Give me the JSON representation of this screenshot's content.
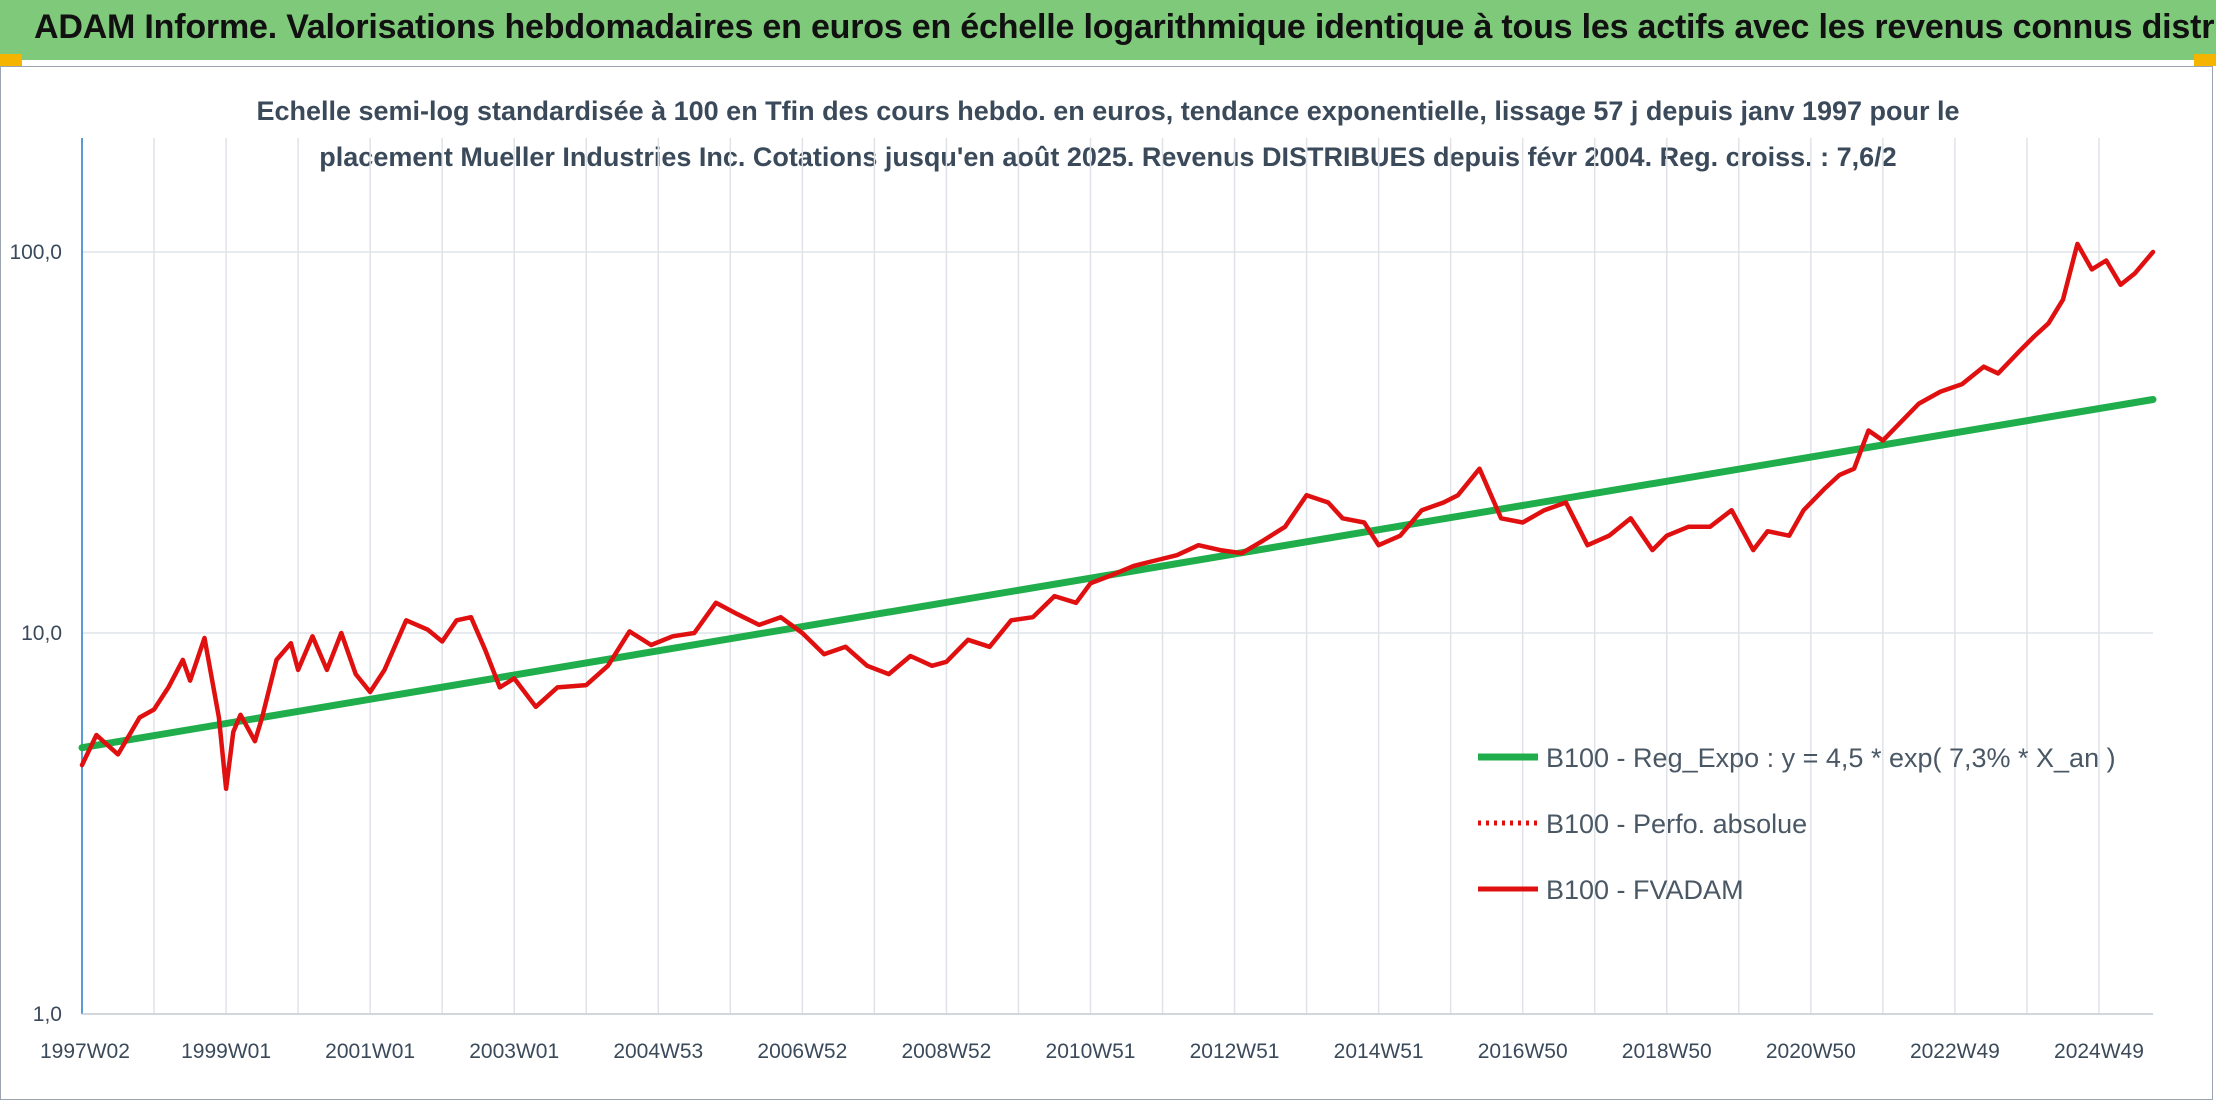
{
  "banner": {
    "title": "ADAM Informe. Valorisations hebdomadaires en euros en échelle logarithmique identique à tous les actifs avec les revenus connus distribués",
    "color": "#7fc97a"
  },
  "chart_data": {
    "type": "line",
    "title_line1": "Echelle semi-log standardisée à 100 en Tfin des cours hebdo. en euros, tendance exponentielle, lissage 57 j depuis janv 1997 pour le",
    "title_line2": "placement Mueller Industries Inc. Cotations jusqu'en août 2025. Revenus DISTRIBUES depuis févr 2004. Reg. croiss. : 7,6/2",
    "yscale": "log",
    "ylim": [
      1,
      200
    ],
    "yticks": [
      {
        "value": 1,
        "label": "1,0"
      },
      {
        "value": 10,
        "label": "10,0"
      },
      {
        "value": 100,
        "label": "100,0"
      }
    ],
    "xlim": [
      1997.0,
      2025.75
    ],
    "xticks": [
      {
        "value": 1997.0,
        "label": "1997W02"
      },
      {
        "value": 1999.0,
        "label": "1999W01"
      },
      {
        "value": 2001.0,
        "label": "2001W01"
      },
      {
        "value": 2003.0,
        "label": "2003W01"
      },
      {
        "value": 2005.0,
        "label": "2004W53"
      },
      {
        "value": 2007.0,
        "label": "2006W52"
      },
      {
        "value": 2009.0,
        "label": "2008W52"
      },
      {
        "value": 2011.0,
        "label": "2010W51"
      },
      {
        "value": 2013.0,
        "label": "2012W51"
      },
      {
        "value": 2015.0,
        "label": "2014W51"
      },
      {
        "value": 2017.0,
        "label": "2016W50"
      },
      {
        "value": 2019.0,
        "label": "2018W50"
      },
      {
        "value": 2021.0,
        "label": "2020W50"
      },
      {
        "value": 2023.0,
        "label": "2022W49"
      },
      {
        "value": 2025.0,
        "label": "2024W49"
      }
    ],
    "grid": "vertical",
    "legend_position": "right",
    "series": [
      {
        "name": "B100 - Reg_Expo : y = 4,5 * exp( 7,3% *  X_an )",
        "color": "#1fae4b",
        "style": "solid",
        "x": [
          1997.0,
          2025.75
        ],
        "y": [
          5.0,
          41.0
        ]
      },
      {
        "name": "B100 - Perfo. absolue",
        "color": "#e01010",
        "style": "dotted",
        "x": [],
        "y": []
      },
      {
        "name": "B100 - FVADAM",
        "color": "#e01010",
        "style": "solid",
        "x": [
          1997.0,
          1997.2,
          1997.5,
          1997.8,
          1998.0,
          1998.2,
          1998.4,
          1998.5,
          1998.7,
          1998.9,
          1999.0,
          1999.1,
          1999.2,
          1999.4,
          1999.5,
          1999.7,
          1999.9,
          2000.0,
          2000.2,
          2000.4,
          2000.6,
          2000.8,
          2001.0,
          2001.2,
          2001.5,
          2001.8,
          2002.0,
          2002.2,
          2002.4,
          2002.6,
          2002.8,
          2003.0,
          2003.3,
          2003.6,
          2004.0,
          2004.3,
          2004.6,
          2004.9,
          2005.2,
          2005.5,
          2005.8,
          2006.1,
          2006.4,
          2006.7,
          2007.0,
          2007.3,
          2007.6,
          2007.9,
          2008.2,
          2008.5,
          2008.8,
          2009.0,
          2009.3,
          2009.6,
          2009.9,
          2010.2,
          2010.5,
          2010.8,
          2011.0,
          2011.3,
          2011.6,
          2011.9,
          2012.2,
          2012.5,
          2012.8,
          2013.1,
          2013.4,
          2013.7,
          2014.0,
          2014.3,
          2014.5,
          2014.8,
          2015.0,
          2015.3,
          2015.6,
          2015.9,
          2016.1,
          2016.4,
          2016.7,
          2017.0,
          2017.3,
          2017.6,
          2017.9,
          2018.2,
          2018.5,
          2018.8,
          2019.0,
          2019.3,
          2019.6,
          2019.9,
          2020.2,
          2020.4,
          2020.7,
          2020.9,
          2021.2,
          2021.4,
          2021.6,
          2021.8,
          2022.0,
          2022.2,
          2022.5,
          2022.8,
          2023.1,
          2023.4,
          2023.6,
          2023.9,
          2024.1,
          2024.3,
          2024.5,
          2024.7,
          2024.9,
          2025.1,
          2025.3,
          2025.5,
          2025.75
        ],
        "y": [
          4.5,
          5.4,
          4.8,
          6.0,
          6.3,
          7.2,
          8.5,
          7.5,
          9.7,
          6.0,
          3.9,
          5.5,
          6.1,
          5.2,
          6.0,
          8.5,
          9.4,
          8.0,
          9.8,
          8.0,
          10.0,
          7.8,
          7.0,
          8.0,
          10.8,
          10.2,
          9.5,
          10.8,
          11.0,
          9.0,
          7.2,
          7.6,
          6.4,
          7.2,
          7.3,
          8.2,
          10.1,
          9.3,
          9.8,
          10.0,
          12.0,
          11.2,
          10.5,
          11.0,
          10.0,
          8.8,
          9.2,
          8.2,
          7.8,
          8.7,
          8.2,
          8.4,
          9.6,
          9.2,
          10.8,
          11.0,
          12.5,
          12.0,
          13.5,
          14.2,
          15.0,
          15.5,
          16.0,
          17.0,
          16.5,
          16.2,
          17.5,
          19.0,
          23.0,
          22.0,
          20.0,
          19.5,
          17.0,
          18.0,
          21.0,
          22.0,
          23.0,
          27.0,
          20.0,
          19.5,
          21.0,
          22.0,
          17.0,
          18.0,
          20.0,
          16.5,
          18.0,
          19.0,
          19.0,
          21.0,
          16.5,
          18.5,
          18.0,
          21.0,
          24.0,
          26.0,
          27.0,
          34.0,
          32.0,
          35.0,
          40.0,
          43.0,
          45.0,
          50.0,
          48.0,
          55.0,
          60.0,
          65.0,
          75.0,
          105.0,
          90.0,
          95.0,
          82.0,
          88.0,
          100.0
        ]
      }
    ]
  }
}
